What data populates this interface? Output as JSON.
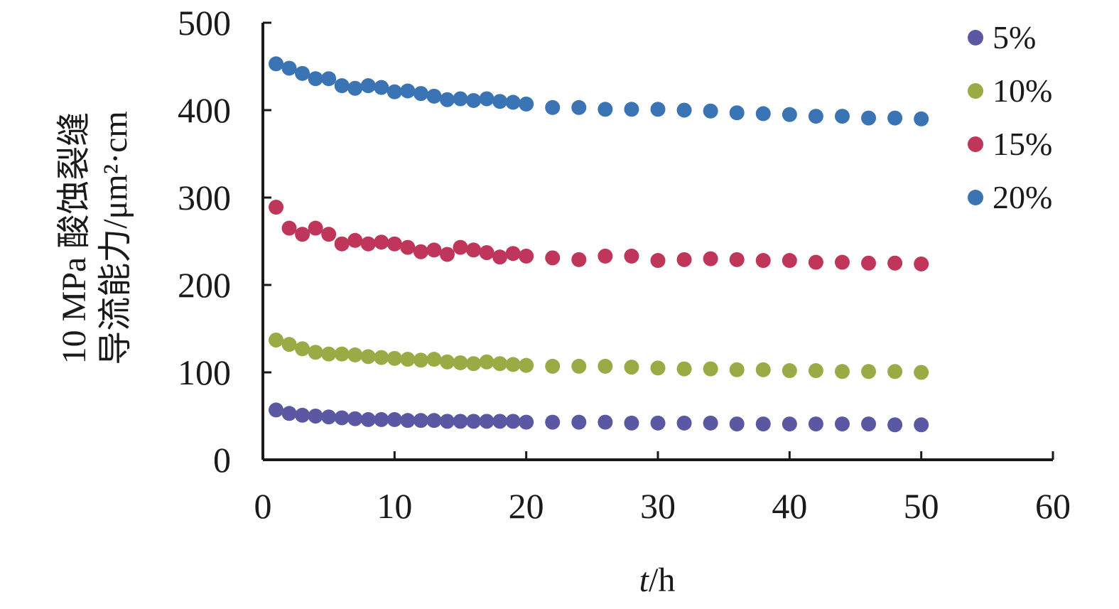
{
  "chart_data": {
    "type": "scatter",
    "xlabel": "t/h",
    "ylabel_line1": "10 MPa 酸蚀裂缝",
    "ylabel_line2": "导流能力/μm²·cm",
    "xlim": [
      0,
      60
    ],
    "ylim": [
      0,
      500
    ],
    "x_ticks": [
      "0",
      "10",
      "20",
      "30",
      "40",
      "50",
      "60"
    ],
    "y_ticks": [
      "0",
      "100",
      "200",
      "300",
      "400",
      "500"
    ],
    "grid": false,
    "legend_position": "top-right",
    "x": [
      1,
      2,
      3,
      4,
      5,
      6,
      7,
      8,
      9,
      10,
      11,
      12,
      13,
      14,
      15,
      16,
      17,
      18,
      19,
      20,
      22,
      24,
      26,
      28,
      30,
      32,
      34,
      36,
      38,
      40,
      42,
      44,
      46,
      48,
      50
    ],
    "series": [
      {
        "name": "5%",
        "color": "#5b58a3",
        "values": [
          57,
          53,
          51,
          50,
          49,
          48,
          47,
          46,
          46,
          46,
          45,
          45,
          45,
          44,
          44,
          44,
          44,
          44,
          44,
          43,
          43,
          43,
          43,
          42,
          42,
          42,
          42,
          41,
          41,
          41,
          41,
          41,
          41,
          40,
          40
        ]
      },
      {
        "name": "10%",
        "color": "#9aab46",
        "values": [
          137,
          132,
          127,
          123,
          121,
          121,
          120,
          118,
          117,
          116,
          115,
          114,
          115,
          112,
          111,
          110,
          112,
          110,
          109,
          108,
          107,
          107,
          107,
          106,
          105,
          104,
          104,
          103,
          103,
          102,
          102,
          101,
          101,
          101,
          100
        ]
      },
      {
        "name": "15%",
        "color": "#c0365a",
        "values": [
          289,
          265,
          258,
          265,
          258,
          247,
          251,
          247,
          249,
          247,
          243,
          238,
          240,
          235,
          243,
          240,
          237,
          232,
          236,
          233,
          231,
          229,
          233,
          233,
          228,
          229,
          230,
          229,
          228,
          228,
          226,
          226,
          225,
          225,
          224
        ]
      },
      {
        "name": "20%",
        "color": "#3a74b5",
        "values": [
          453,
          448,
          442,
          436,
          436,
          428,
          425,
          428,
          426,
          421,
          422,
          419,
          416,
          412,
          413,
          411,
          413,
          410,
          409,
          407,
          403,
          403,
          401,
          401,
          401,
          400,
          399,
          397,
          396,
          395,
          393,
          393,
          391,
          391,
          390
        ]
      }
    ]
  }
}
